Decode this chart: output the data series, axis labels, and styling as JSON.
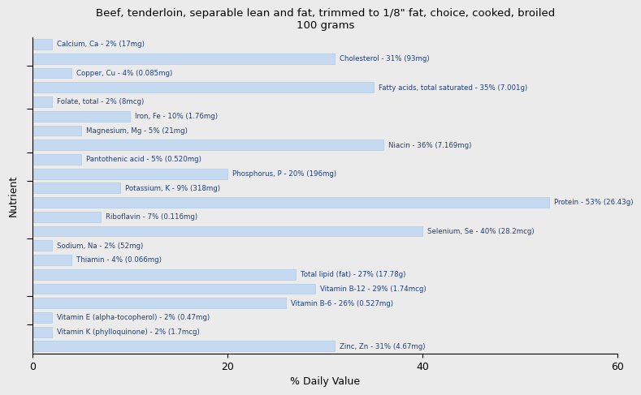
{
  "title": "Beef, tenderloin, separable lean and fat, trimmed to 1/8\" fat, choice, cooked, broiled\n100 grams",
  "xlabel": "% Daily Value",
  "ylabel": "Nutrient",
  "xlim": [
    0,
    60
  ],
  "xticks": [
    0,
    20,
    40,
    60
  ],
  "bar_color": "#c5d9f1",
  "bar_edge_color": "#a8c4e0",
  "text_color": "#1f3d7a",
  "background_color": "#ebebeb",
  "axes_background": "#ebebeb",
  "nutrients": [
    {
      "label": "Calcium, Ca - 2% (17mg)",
      "value": 2
    },
    {
      "label": "Cholesterol - 31% (93mg)",
      "value": 31
    },
    {
      "label": "Copper, Cu - 4% (0.085mg)",
      "value": 4
    },
    {
      "label": "Fatty acids, total saturated - 35% (7.001g)",
      "value": 35
    },
    {
      "label": "Folate, total - 2% (8mcg)",
      "value": 2
    },
    {
      "label": "Iron, Fe - 10% (1.76mg)",
      "value": 10
    },
    {
      "label": "Magnesium, Mg - 5% (21mg)",
      "value": 5
    },
    {
      "label": "Niacin - 36% (7.169mg)",
      "value": 36
    },
    {
      "label": "Pantothenic acid - 5% (0.520mg)",
      "value": 5
    },
    {
      "label": "Phosphorus, P - 20% (196mg)",
      "value": 20
    },
    {
      "label": "Potassium, K - 9% (318mg)",
      "value": 9
    },
    {
      "label": "Protein - 53% (26.43g)",
      "value": 53
    },
    {
      "label": "Riboflavin - 7% (0.116mg)",
      "value": 7
    },
    {
      "label": "Selenium, Se - 40% (28.2mcg)",
      "value": 40
    },
    {
      "label": "Sodium, Na - 2% (52mg)",
      "value": 2
    },
    {
      "label": "Thiamin - 4% (0.066mg)",
      "value": 4
    },
    {
      "label": "Total lipid (fat) - 27% (17.78g)",
      "value": 27
    },
    {
      "label": "Vitamin B-12 - 29% (1.74mcg)",
      "value": 29
    },
    {
      "label": "Vitamin B-6 - 26% (0.527mg)",
      "value": 26
    },
    {
      "label": "Vitamin E (alpha-tocopherol) - 2% (0.47mg)",
      "value": 2
    },
    {
      "label": "Vitamin K (phylloquinone) - 2% (1.7mcg)",
      "value": 2
    },
    {
      "label": "Zinc, Zn - 31% (4.67mg)",
      "value": 31
    }
  ],
  "group_tick_positions": [
    1.5,
    3.5,
    7.5,
    11.5,
    13.5,
    16.5,
    19.5
  ]
}
